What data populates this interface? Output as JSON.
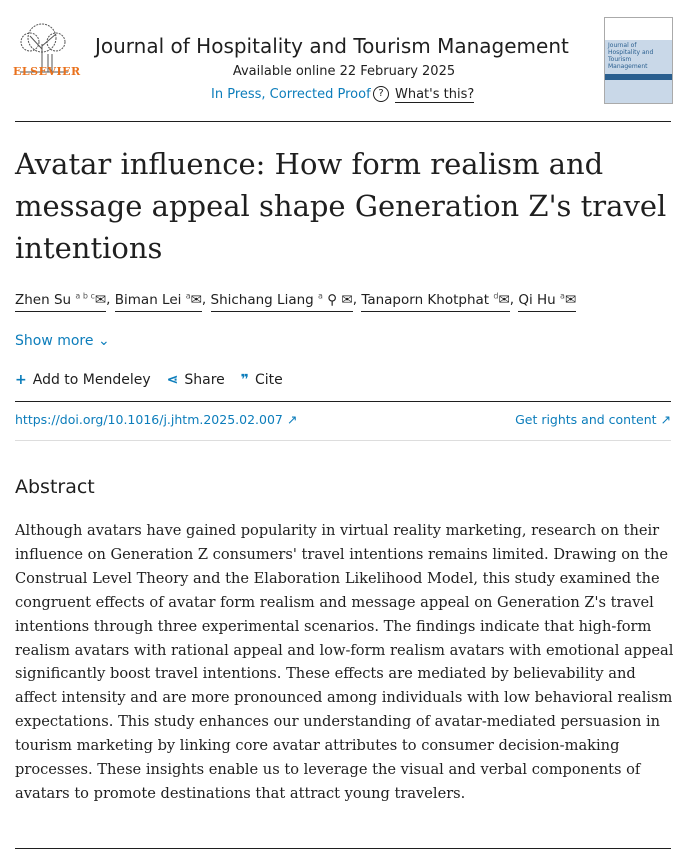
{
  "header": {
    "publisher": "ELSEVIER",
    "journal": "Journal of Hospitality and Tourism Management",
    "available": "Available online 22 February 2025",
    "status": "In Press, Corrected Proof",
    "help_icon": "question-circle-icon",
    "whats_this": "What's this?",
    "cover_text": "Journal of Hospitality and Tourism Management"
  },
  "article": {
    "title": "Avatar influence: How form realism and message appeal shape Generation Z's travel intentions",
    "authors": [
      {
        "name": "Zhen Su",
        "sup": "a b c"
      },
      {
        "name": "Biman Lei",
        "sup": "a"
      },
      {
        "name": "Shichang Liang",
        "sup": "a",
        "corresponding": true
      },
      {
        "name": "Tanaporn Khotphat",
        "sup": "d"
      },
      {
        "name": "Qi Hu",
        "sup": "a"
      }
    ],
    "show_more": "Show more",
    "tools": {
      "mendeley": "Add to Mendeley",
      "share": "Share",
      "cite": "Cite"
    },
    "doi": "https://doi.org/10.1016/j.jhtm.2025.02.007",
    "rights": "Get rights and content"
  },
  "abstract": {
    "heading": "Abstract",
    "text": "Although avatars have gained popularity in virtual reality marketing, research on their influence on Generation Z consumers' travel intentions remains limited. Drawing on the Construal Level Theory and the Elaboration Likelihood Model, this study examined the congruent effects of avatar form realism and message appeal on Generation Z's travel intentions through three experimental scenarios. The findings indicate that high-form realism avatars with rational appeal and low-form realism avatars with emotional appeal significantly boost travel intentions. These effects are mediated by believability and affect intensity and are more pronounced among individuals with low behavioral realism expectations. This study enhances our understanding of avatar-mediated persuasion in tourism marketing by linking core avatar attributes to consumer decision-making processes. These insights enable us to leverage the visual and verbal components of avatars to promote destinations that attract young travelers."
  },
  "colors": {
    "link": "#0c7dbb",
    "elsevier": "#e9711c"
  }
}
